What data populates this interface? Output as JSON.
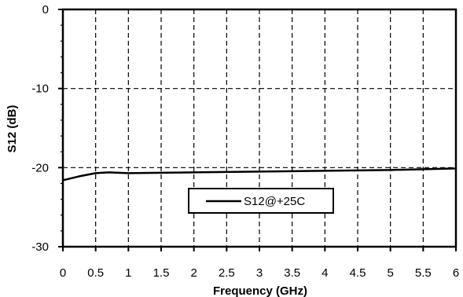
{
  "chart_data": {
    "type": "line",
    "xlabel": "Frequency (GHz)",
    "ylabel": "S12 (dB)",
    "xlim": [
      0,
      6
    ],
    "ylim": [
      -30,
      0
    ],
    "x_ticks": [
      "0",
      "0.5",
      "1",
      "1.5",
      "2",
      "2.5",
      "3",
      "3.5",
      "4",
      "4.5",
      "5",
      "5.5",
      "6"
    ],
    "y_ticks": [
      "0",
      "-10",
      "-20",
      "-30"
    ],
    "grid": true,
    "legend_position": "center-bottom",
    "series": [
      {
        "name": "S12@+25C",
        "color": "#000000",
        "points": [
          {
            "x": 0.0,
            "y": -21.6
          },
          {
            "x": 0.25,
            "y": -21.1
          },
          {
            "x": 0.5,
            "y": -20.7
          },
          {
            "x": 0.7,
            "y": -20.6
          },
          {
            "x": 1.0,
            "y": -20.7
          },
          {
            "x": 1.5,
            "y": -20.65
          },
          {
            "x": 2.0,
            "y": -20.6
          },
          {
            "x": 3.0,
            "y": -20.5
          },
          {
            "x": 4.0,
            "y": -20.4
          },
          {
            "x": 5.0,
            "y": -20.3
          },
          {
            "x": 6.0,
            "y": -20.1
          }
        ]
      }
    ]
  }
}
